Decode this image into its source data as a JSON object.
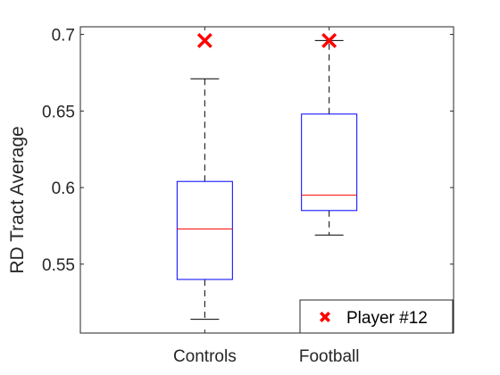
{
  "chart_data": {
    "type": "box",
    "title": "",
    "xlabel": "",
    "ylabel": "RD Tract Average",
    "ylim": [
      0.505,
      0.705
    ],
    "yticks": [
      0.55,
      0.6,
      0.65,
      0.7
    ],
    "ytick_labels": [
      "0.55",
      "0.6",
      "0.65",
      "0.7"
    ],
    "categories": [
      "Controls",
      "Football"
    ],
    "boxes": [
      {
        "category": "Controls",
        "min": 0.514,
        "q1": 0.54,
        "median": 0.573,
        "q3": 0.604,
        "max": 0.671
      },
      {
        "category": "Football",
        "min": 0.569,
        "q1": 0.585,
        "median": 0.595,
        "q3": 0.648,
        "max": 0.696
      }
    ],
    "highlight": {
      "name": "Player #12",
      "marker": "x",
      "color": "#ff0000",
      "points": [
        {
          "category": "Controls",
          "value": 0.696
        },
        {
          "category": "Football",
          "value": 0.696
        }
      ]
    },
    "colors": {
      "box": "#0000ff",
      "median": "#ff0000",
      "whisker": "#000000"
    },
    "grid": false,
    "legend_position": "bottom-right"
  }
}
